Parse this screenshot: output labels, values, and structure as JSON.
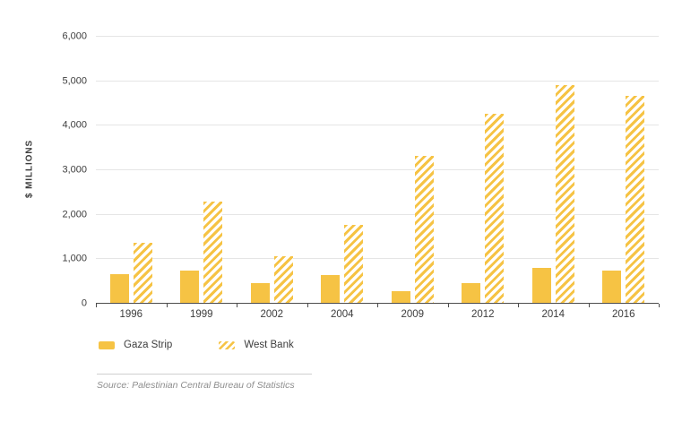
{
  "chart_data": {
    "type": "bar",
    "title": "",
    "xlabel": "",
    "ylabel": "$ MILLIONS",
    "categories": [
      "1996",
      "1999",
      "2002",
      "2004",
      "2009",
      "2012",
      "2014",
      "2016"
    ],
    "series": [
      {
        "name": "Gaza Strip",
        "style": "solid",
        "values": [
          650,
          720,
          450,
          630,
          270,
          440,
          790,
          720
        ]
      },
      {
        "name": "West Bank",
        "style": "hatched",
        "values": [
          1350,
          2280,
          1050,
          1750,
          3300,
          4250,
          4900,
          4650
        ]
      }
    ],
    "ylim": [
      0,
      6000
    ],
    "yticks": [
      0,
      1000,
      2000,
      3000,
      4000,
      5000,
      6000
    ],
    "ytick_labels": [
      "0",
      "1,000",
      "2,000",
      "3,000",
      "4,000",
      "5,000",
      "6,000"
    ],
    "grid": "horizontal",
    "legend_position": "bottom-left",
    "colors": {
      "bar_yellow": "#f6c344",
      "grid": "#e5e5e5",
      "axis": "#4d4d4d",
      "text": "#3d3d3d",
      "source_text": "#8e8e8e"
    }
  },
  "legend": {
    "items": [
      {
        "label": "Gaza Strip",
        "swatch": "solid"
      },
      {
        "label": "West Bank",
        "swatch": "hatched"
      }
    ]
  },
  "source": {
    "text": "Source: Palestinian Central Bureau of Statistics"
  }
}
